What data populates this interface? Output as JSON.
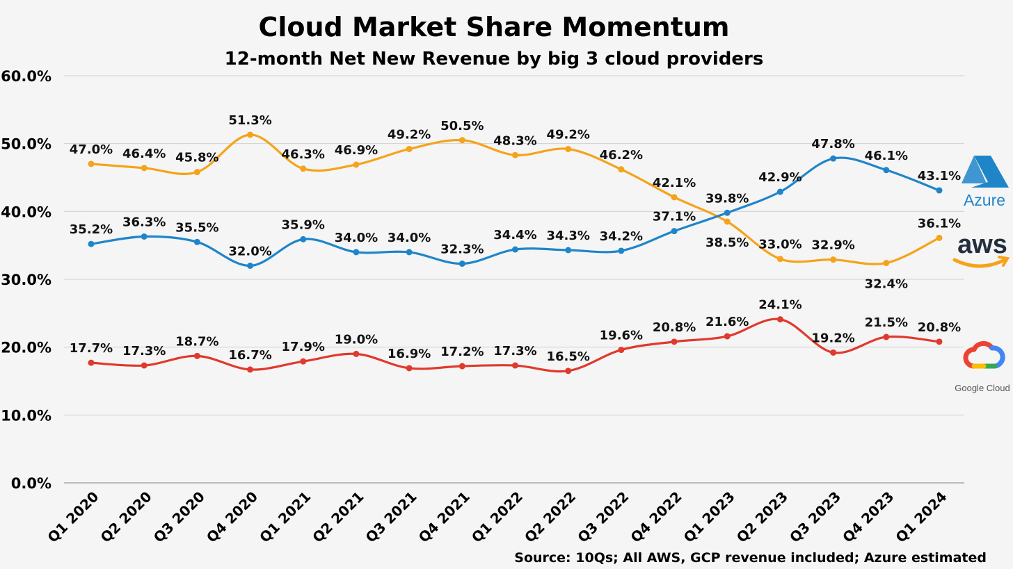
{
  "chart_data": {
    "type": "line",
    "title": "Cloud Market Share Momentum",
    "subtitle": "12-month Net New Revenue by big 3 cloud providers",
    "categories": [
      "Q1 2020",
      "Q2 2020",
      "Q3 2020",
      "Q4 2020",
      "Q1 2021",
      "Q2 2021",
      "Q3 2021",
      "Q4 2021",
      "Q1 2022",
      "Q2 2022",
      "Q3 2022",
      "Q4 2022",
      "Q1 2023",
      "Q2 2023",
      "Q3 2023",
      "Q4 2023",
      "Q1 2024"
    ],
    "ylim": [
      0,
      60
    ],
    "yticks": [
      "0.0%",
      "10.0%",
      "20.0%",
      "30.0%",
      "40.0%",
      "50.0%",
      "60.0%"
    ],
    "grid": true,
    "series": [
      {
        "key": "aws",
        "color": "#f5a31a",
        "values": [
          47.0,
          46.4,
          45.8,
          51.3,
          46.3,
          46.9,
          49.2,
          50.5,
          48.3,
          49.2,
          46.2,
          42.1,
          38.5,
          33.0,
          32.9,
          32.4,
          36.1
        ],
        "labels": [
          "47.0%",
          "46.4%",
          "45.8%",
          "51.3%",
          "46.3%",
          "46.9%",
          "49.2%",
          "50.5%",
          "48.3%",
          "49.2%",
          "46.2%",
          "42.1%",
          "38.5%",
          "33.0%",
          "32.9%",
          "32.4%",
          "36.1%"
        ],
        "label_pos": [
          "above",
          "above",
          "above",
          "above",
          "above",
          "above",
          "above",
          "above",
          "above",
          "above",
          "above",
          "above",
          "below",
          "above",
          "above",
          "below",
          "above"
        ]
      },
      {
        "key": "azure",
        "color": "#1f85c9",
        "values": [
          35.2,
          36.3,
          35.5,
          32.0,
          35.9,
          34.0,
          34.0,
          32.3,
          34.4,
          34.3,
          34.2,
          37.1,
          39.8,
          42.9,
          47.8,
          46.1,
          43.1
        ],
        "labels": [
          "35.2%",
          "36.3%",
          "35.5%",
          "32.0%",
          "35.9%",
          "34.0%",
          "34.0%",
          "32.3%",
          "34.4%",
          "34.3%",
          "34.2%",
          "37.1%",
          "39.8%",
          "42.9%",
          "47.8%",
          "46.1%",
          "43.1%"
        ],
        "label_pos": [
          "above",
          "above",
          "above",
          "above",
          "above",
          "above",
          "above",
          "above",
          "above",
          "above",
          "above",
          "above",
          "above",
          "above",
          "above",
          "above",
          "above"
        ]
      },
      {
        "key": "gcp",
        "color": "#e0392d",
        "values": [
          17.7,
          17.3,
          18.7,
          16.7,
          17.9,
          19.0,
          16.9,
          17.2,
          17.3,
          16.5,
          19.6,
          20.8,
          21.6,
          24.1,
          19.2,
          21.5,
          20.8
        ],
        "labels": [
          "17.7%",
          "17.3%",
          "18.7%",
          "16.7%",
          "17.9%",
          "19.0%",
          "16.9%",
          "17.2%",
          "17.3%",
          "16.5%",
          "19.6%",
          "20.8%",
          "21.6%",
          "24.1%",
          "19.2%",
          "21.5%",
          "20.8%"
        ],
        "label_pos": [
          "above",
          "above",
          "above",
          "above",
          "above",
          "above",
          "above",
          "above",
          "above",
          "above",
          "above",
          "above",
          "above",
          "above",
          "above",
          "above",
          "above"
        ]
      }
    ],
    "legend_logos": {
      "azure": "Azure",
      "aws": "aws",
      "gcp": "Google Cloud"
    },
    "source": "Source: 10Qs; All AWS, GCP revenue included; Azure estimated"
  },
  "logo_icons": [
    "azure-logo-icon",
    "aws-logo-icon",
    "google-cloud-logo-icon"
  ]
}
